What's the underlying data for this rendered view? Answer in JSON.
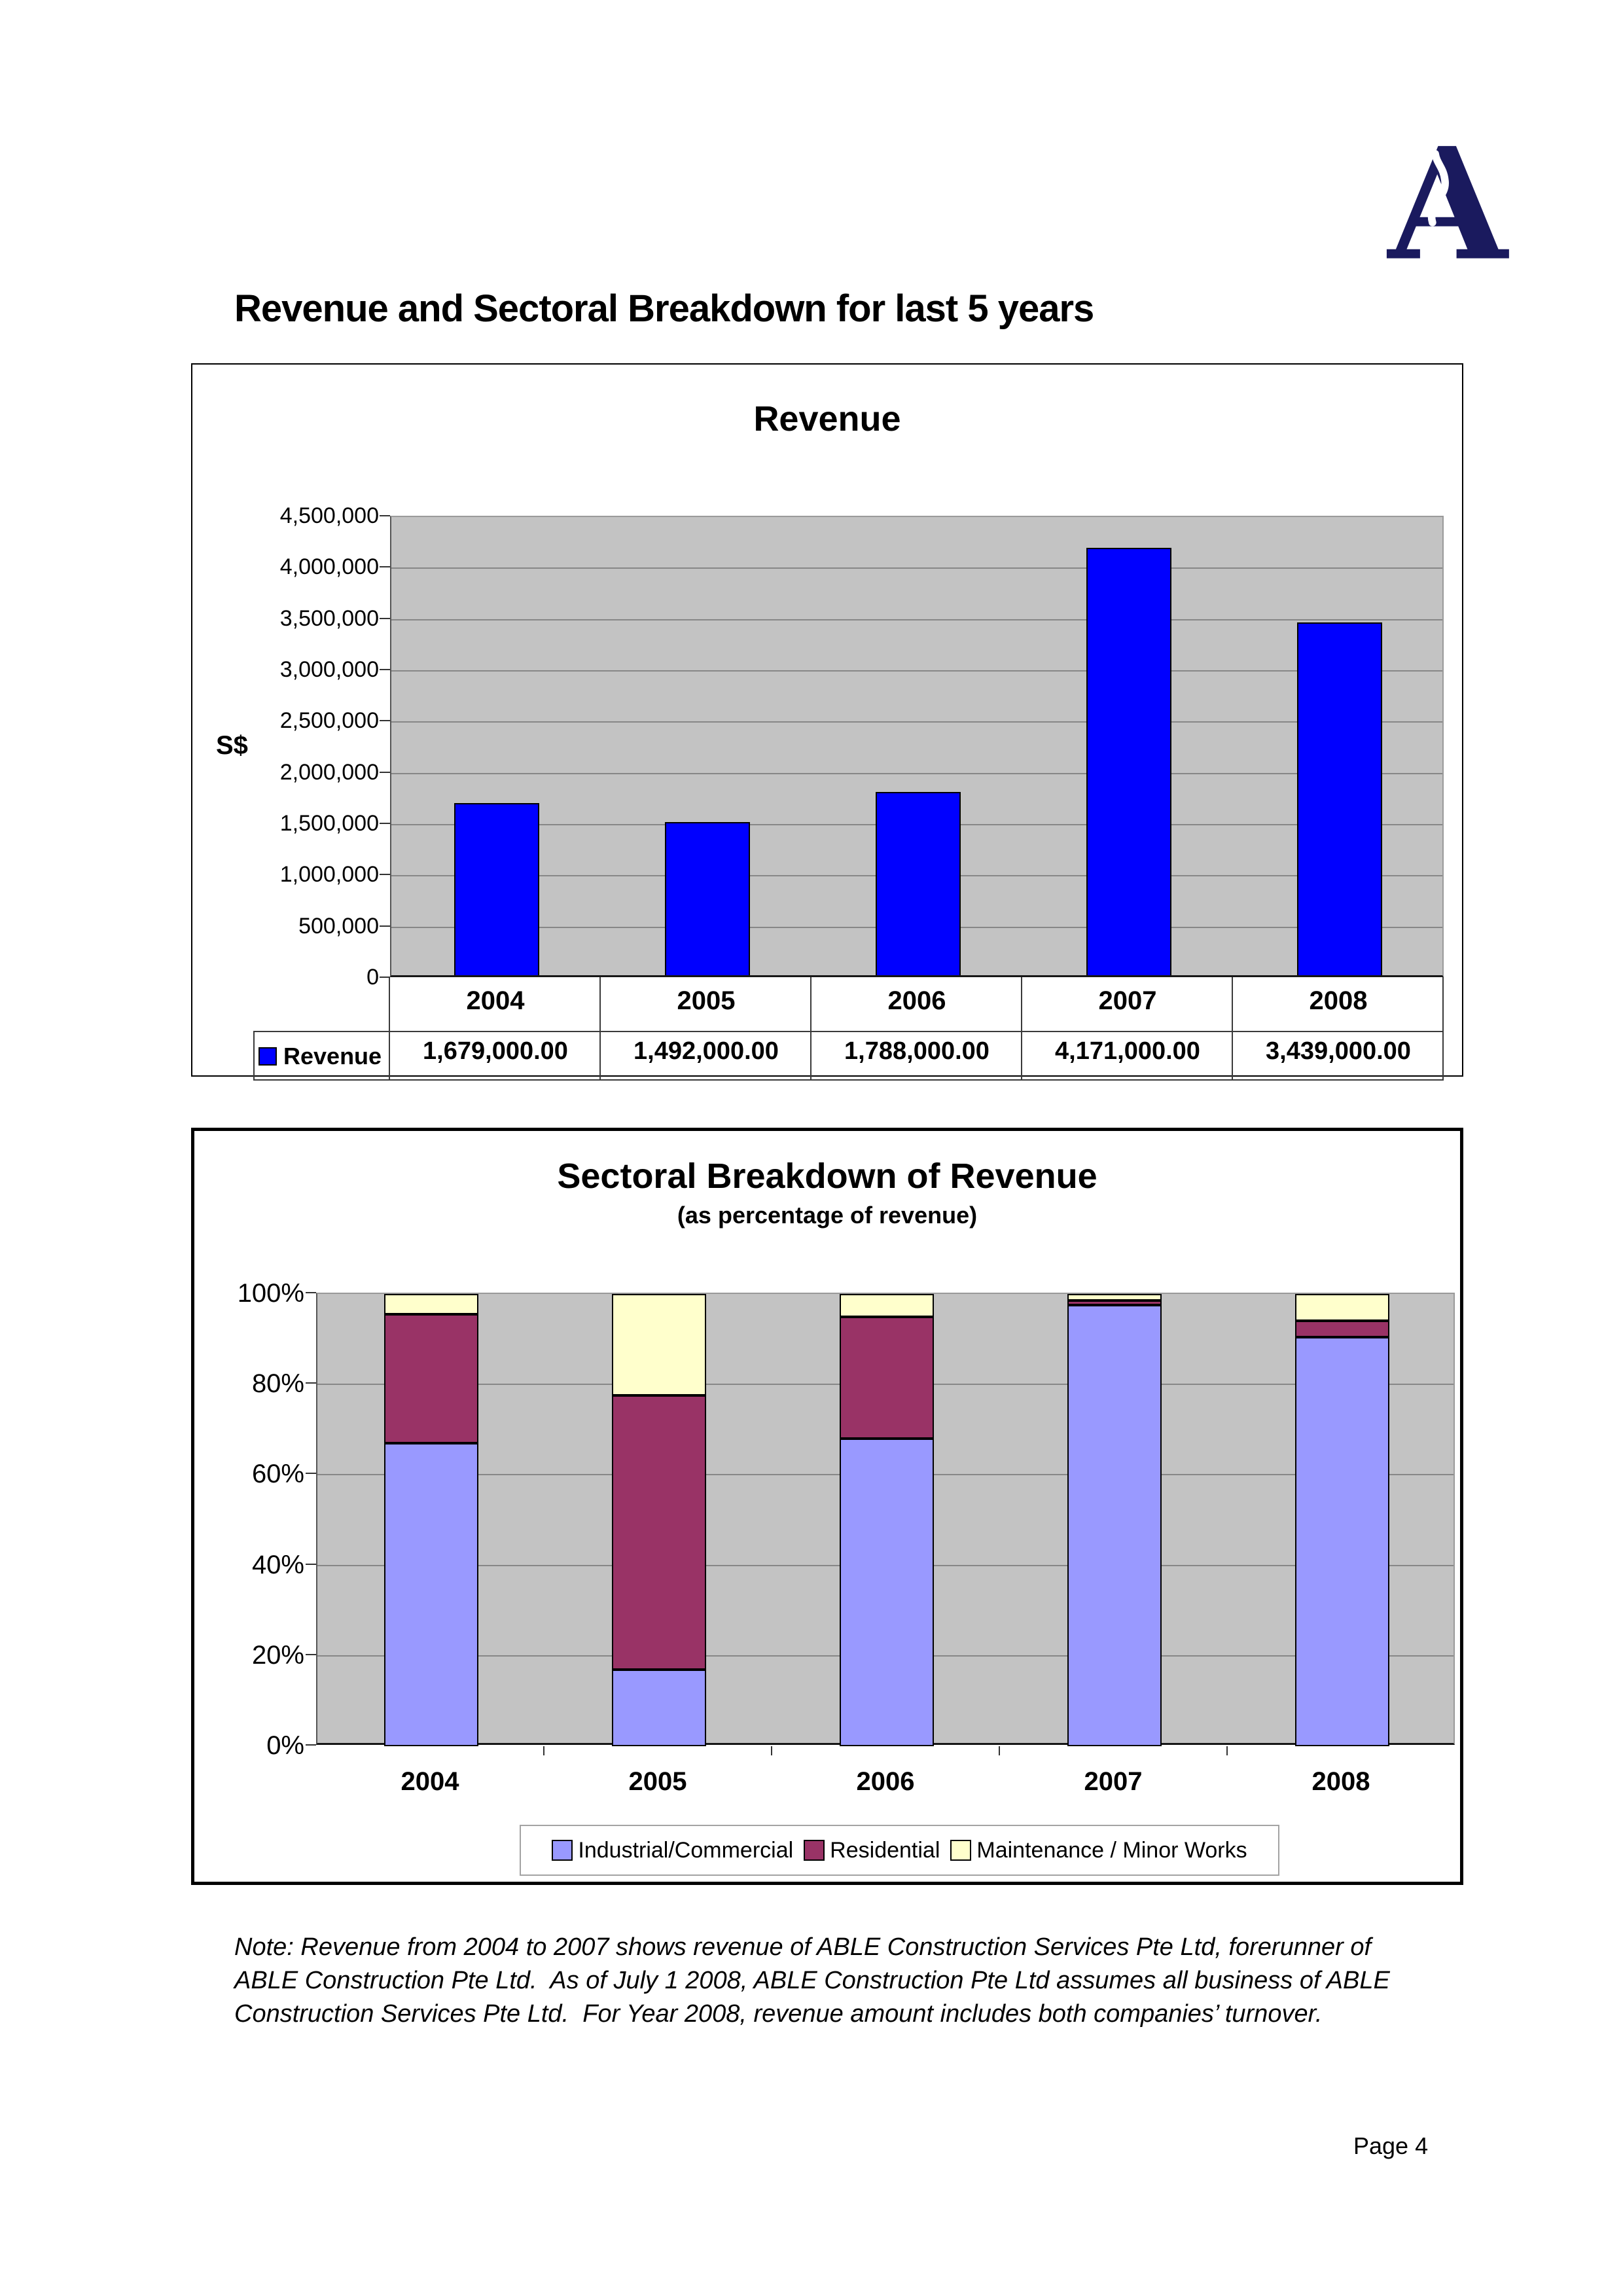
{
  "page": {
    "title": "Revenue and Sectoral Breakdown for last 5 years",
    "note": "Note: Revenue from 2004 to 2007 shows revenue of ABLE Construction Services Pte Ltd, forerunner of ABLE Construction Pte Ltd.  As of July 1 2008, ABLE Construction Pte Ltd assumes all business of ABLE Construction Services Pte Ltd.  For Year 2008, revenue amount includes both companies’ turnover.",
    "page_number": "Page 4",
    "logo": {
      "letter": "A",
      "color": "#1a1a5e"
    }
  },
  "chart_data": [
    {
      "type": "bar",
      "title": "Revenue",
      "ylabel": "S$",
      "categories": [
        "2004",
        "2005",
        "2006",
        "2007",
        "2008"
      ],
      "series": [
        {
          "name": "Revenue",
          "color": "#0000ff",
          "values": [
            1679000,
            1492000,
            1788000,
            4171000,
            3439000
          ],
          "value_labels": [
            "1,679,000.00",
            "1,492,000.00",
            "1,788,000.00",
            "4,171,000.00",
            "3,439,000.00"
          ]
        }
      ],
      "ylim": [
        0,
        4500000
      ],
      "ytick_step": 500000,
      "ytick_labels": [
        "4,500,000",
        "4,000,000",
        "3,500,000",
        "3,000,000",
        "2,500,000",
        "2,000,000",
        "1,500,000",
        "1,000,000",
        "500,000",
        "0"
      ],
      "plot_bg": "#c3c3c3",
      "grid_color": "#878787",
      "grid": true,
      "legend_position": "table-left"
    },
    {
      "type": "bar-stacked-100pct",
      "title": "Sectoral Breakdown of Revenue",
      "subtitle": "(as percentage of revenue)",
      "categories": [
        "2004",
        "2005",
        "2006",
        "2007",
        "2008"
      ],
      "series": [
        {
          "name": "Industrial/Commercial",
          "color": "#9999ff",
          "values_pct": [
            67,
            17,
            68,
            97.5,
            90.5
          ]
        },
        {
          "name": "Residential",
          "color": "#993366",
          "values_pct": [
            28.5,
            60.5,
            27,
            1,
            3.5
          ]
        },
        {
          "name": "Maintenance / Minor Works",
          "color": "#ffffcc",
          "values_pct": [
            4.5,
            22.5,
            5,
            1.5,
            6
          ]
        }
      ],
      "ylim": [
        0,
        100
      ],
      "ytick_labels": [
        "100%",
        "80%",
        "60%",
        "40%",
        "20%",
        "0%"
      ],
      "plot_bg": "#c3c3c3",
      "grid_color": "#878787",
      "grid": true,
      "legend_position": "bottom"
    }
  ]
}
